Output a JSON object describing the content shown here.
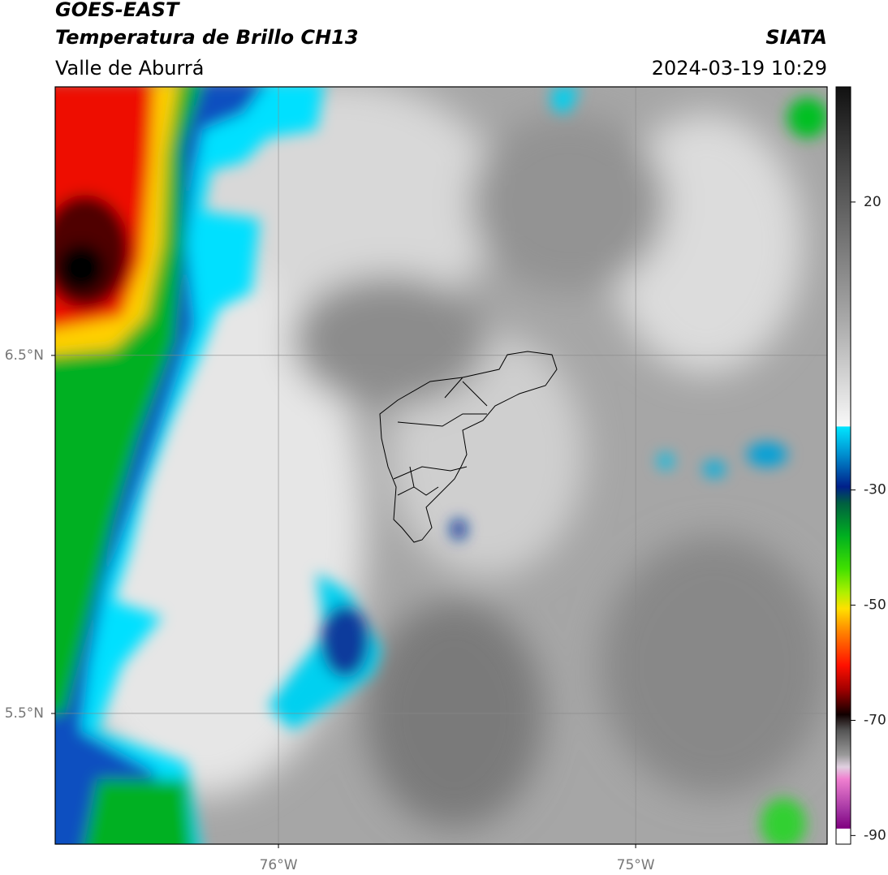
{
  "header": {
    "title": "GOES-EAST",
    "subtitle": "Temperatura de Brillo CH13",
    "region": "Valle de Aburrá",
    "source": "SIATA",
    "datetime": "2024-03-19 10:29"
  },
  "map": {
    "lonlim": [
      -76.625,
      -74.464
    ],
    "latlim": [
      5.135,
      7.25
    ],
    "lonticks": [
      {
        "value": -76,
        "label": "76°W"
      },
      {
        "value": -75,
        "label": "75°W"
      }
    ],
    "latticks": [
      {
        "value": 5.5,
        "label": "5.5°N"
      },
      {
        "value": 6.5,
        "label": "6.5°N"
      }
    ],
    "grid": true
  },
  "colorbar": {
    "lim": [
      -91.5,
      40
    ],
    "ticks": [
      -90,
      -70,
      -50,
      -30,
      20
    ]
  }
}
